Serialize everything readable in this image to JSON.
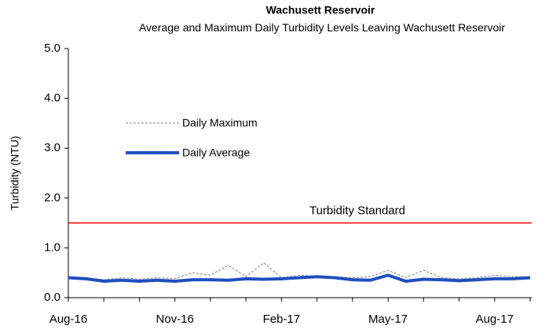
{
  "chart_data": {
    "type": "line",
    "title": "Wachusett Reservoir",
    "subtitle": "Average and Maximum Daily Turbidity Levels Leaving Wachusett Reservoir",
    "y_label": "Turbidity (NTU)",
    "categories": [
      "Aug-16",
      null,
      null,
      null,
      null,
      null,
      "Nov-16",
      null,
      null,
      null,
      null,
      null,
      "Feb-17",
      null,
      null,
      null,
      null,
      null,
      "May-17",
      null,
      null,
      null,
      null,
      null,
      "Aug-17",
      null,
      null
    ],
    "series": [
      {
        "name": "Daily Maximum",
        "color": "#808080",
        "dashed": true,
        "values": [
          0.42,
          0.4,
          0.36,
          0.4,
          0.37,
          0.4,
          0.38,
          0.5,
          0.45,
          0.65,
          0.42,
          0.7,
          0.4,
          0.45,
          0.43,
          0.42,
          0.4,
          0.42,
          0.55,
          0.4,
          0.55,
          0.4,
          0.38,
          0.4,
          0.45,
          0.42,
          0.42
        ]
      },
      {
        "name": "Daily Average",
        "color": "#1f4fbf",
        "dashed": false,
        "values": [
          0.4,
          0.38,
          0.33,
          0.35,
          0.33,
          0.35,
          0.33,
          0.36,
          0.36,
          0.35,
          0.38,
          0.37,
          0.38,
          0.4,
          0.42,
          0.4,
          0.36,
          0.35,
          0.45,
          0.33,
          0.37,
          0.36,
          0.34,
          0.36,
          0.38,
          0.38,
          0.4
        ]
      }
    ],
    "standard": {
      "value": 1.5,
      "label": "Turbidity Standard",
      "color": "#ff0000"
    },
    "ylim": [
      0,
      5
    ],
    "yticks": [
      {
        "value": 0,
        "label": "0.0"
      },
      {
        "value": 1,
        "label": "1.0"
      },
      {
        "value": 2,
        "label": "2.0"
      },
      {
        "value": 3,
        "label": "3.0"
      },
      {
        "value": 4,
        "label": "4.0"
      },
      {
        "value": 5,
        "label": "5.0"
      }
    ],
    "legend": "upper left"
  }
}
